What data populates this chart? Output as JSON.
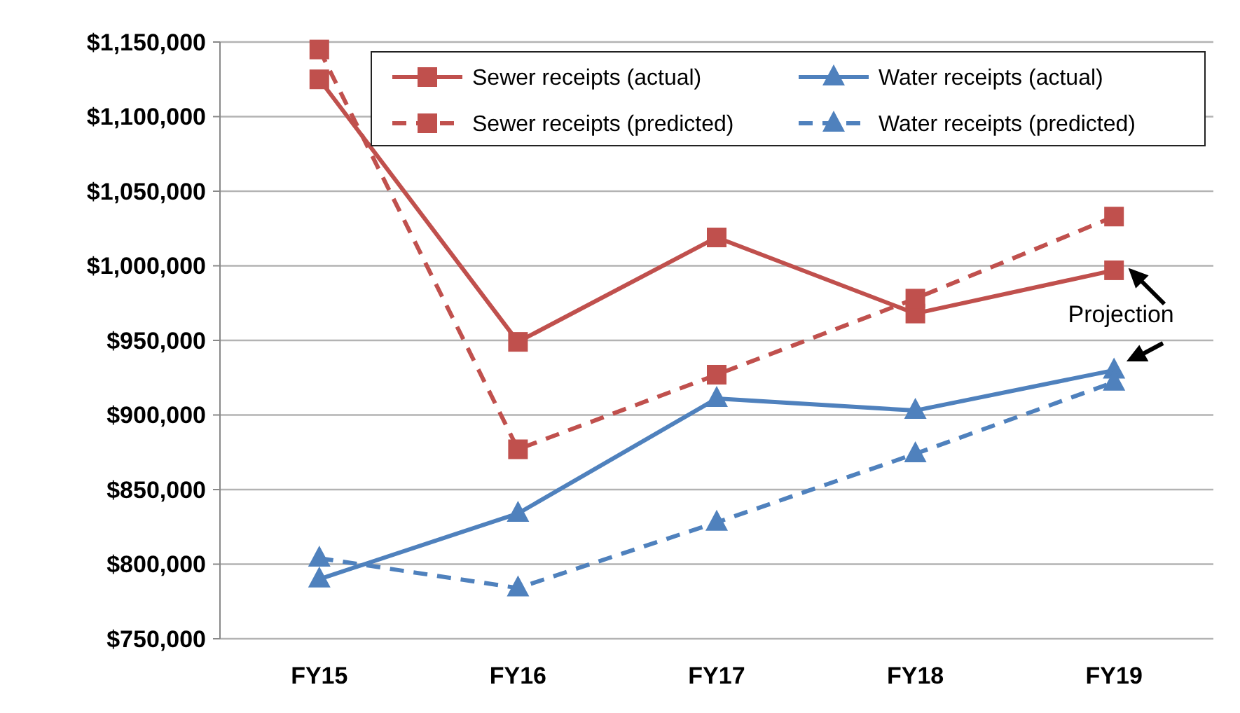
{
  "chart_data": {
    "type": "line",
    "categories": [
      "FY15",
      "FY16",
      "FY17",
      "FY18",
      "FY19"
    ],
    "series": [
      {
        "name": "Sewer receipts (actual)",
        "color": "#c0504d",
        "values": [
          1125000,
          949000,
          1019000,
          968000,
          997000
        ],
        "marker": "square",
        "line_style": "solid"
      },
      {
        "name": "Water receipts (actual)",
        "color": "#4f81bd",
        "values": [
          790000,
          834000,
          911000,
          903000,
          930000
        ],
        "marker": "triangle",
        "line_style": "solid"
      },
      {
        "name": "Sewer receipts (predicted)",
        "color": "#c0504d",
        "values": [
          1145000,
          877000,
          927000,
          978000,
          1033000
        ],
        "marker": "square",
        "line_style": "dashed"
      },
      {
        "name": "Water receipts (predicted)",
        "color": "#4f81bd",
        "values": [
          804000,
          784000,
          828000,
          874000,
          922000
        ],
        "marker": "triangle",
        "line_style": "dashed"
      }
    ],
    "ylim": [
      750000,
      1150000
    ],
    "yticks": [
      {
        "value": 750000,
        "label": "$750,000"
      },
      {
        "value": 800000,
        "label": "$800,000"
      },
      {
        "value": 850000,
        "label": "$850,000"
      },
      {
        "value": 900000,
        "label": "$900,000"
      },
      {
        "value": 950000,
        "label": "$950,000"
      },
      {
        "value": 1000000,
        "label": "$1,000,000"
      },
      {
        "value": 1050000,
        "label": "$1,050,000"
      },
      {
        "value": 1100000,
        "label": "$1,100,000"
      },
      {
        "value": 1150000,
        "label": "$1,150,000"
      }
    ],
    "grid": "y",
    "legend": "top right",
    "annotations": [
      "Projection"
    ]
  }
}
